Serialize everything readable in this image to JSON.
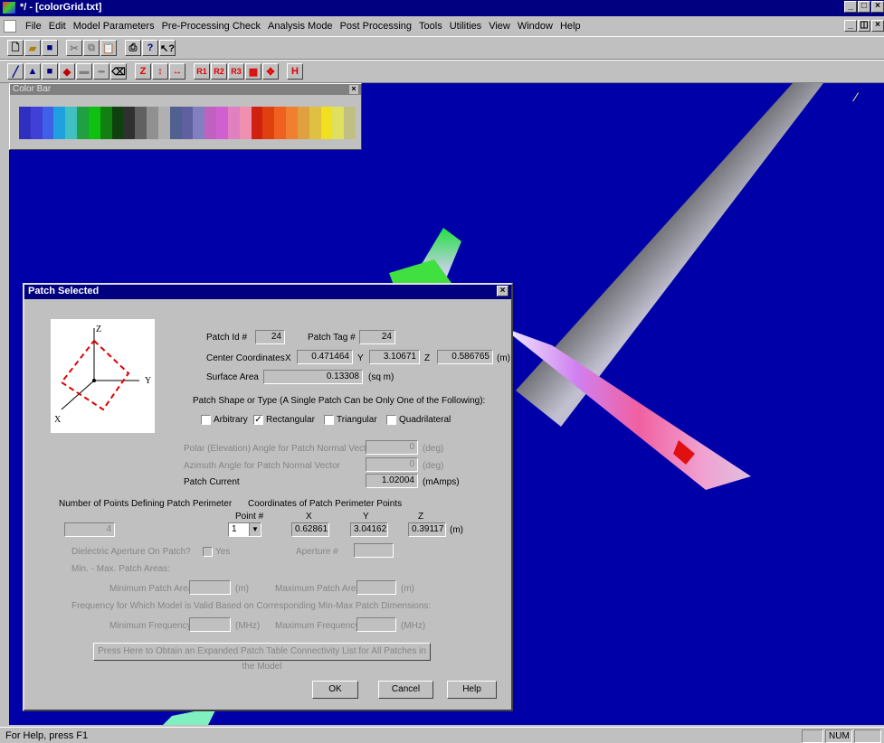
{
  "window": {
    "title": "*/ - [colorGrid.txt]"
  },
  "menu": [
    "File",
    "Edit",
    "Model Parameters",
    "Pre-Processing Check",
    "Analysis Mode",
    "Post Processing",
    "Tools",
    "Utilities",
    "View",
    "Window",
    "Help"
  ],
  "toolbar2": {
    "labels": [
      "Z",
      "R1",
      "R2",
      "R3",
      "H"
    ]
  },
  "colorbar": {
    "title": "Color Bar",
    "colors": [
      "#3030c0",
      "#4040d8",
      "#4060e8",
      "#20a0e0",
      "#40c0c0",
      "#20a040",
      "#10c010",
      "#108010",
      "#104010",
      "#303030",
      "#606060",
      "#909090",
      "#b0b0b0",
      "#506090",
      "#6060a0",
      "#8080c0",
      "#c060c0",
      "#d060d0",
      "#e080c0",
      "#f090b0",
      "#d02010",
      "#e04010",
      "#f06020",
      "#f08030",
      "#e0a040",
      "#e0c040",
      "#f0e020",
      "#e0e060",
      "#c0c080"
    ]
  },
  "status": {
    "help": "For Help, press F1",
    "num": "NUM"
  },
  "dialog": {
    "title": "Patch Selected",
    "diagram_labels": {
      "z": "Z",
      "y": "Y",
      "x": "X"
    },
    "patch_id_label": "Patch Id #",
    "patch_id": "24",
    "patch_tag_label": "Patch Tag #",
    "patch_tag": "24",
    "center_label": "Center Coordinates",
    "x_label": "X",
    "y_label": "Y",
    "z_label": "Z",
    "center_x": "0.471464",
    "center_y": "3.10671",
    "center_z": "0.586765",
    "unit_m": "(m)",
    "surface_area_label": "Surface Area",
    "surface_area": "0.13308",
    "unit_sqm": "(sq m)",
    "shape_heading": "Patch Shape or Type (A Single Patch Can be Only One of the Following):",
    "shapes": [
      "Arbitrary",
      "Rectangular",
      "Triangular",
      "Quadrilateral"
    ],
    "shape_checks": [
      "",
      "✓",
      "",
      ""
    ],
    "polar_label": "Polar (Elevation) Angle for Patch Normal Vector",
    "polar_value": "0",
    "unit_deg": "(deg)",
    "azimuth_label": "Azimuth Angle for Patch Normal Vector",
    "azimuth_value": "0",
    "current_label": "Patch Current",
    "current_value": "1.02004",
    "unit_mamps": "(mAmps)",
    "num_points_label": "Number of Points Defining Patch Perimeter",
    "num_points": "4",
    "coords_heading": "Coordinates of Patch Perimeter Points",
    "point_label": "Point #",
    "point_value": "1",
    "pt_x": "0.62861",
    "pt_y": "3.04162",
    "pt_z": "0.39117",
    "dielectric_label": "Dielectric Aperture On Patch?",
    "yes_label": "Yes",
    "aperture_label": "Aperture #",
    "minmax_area_label": "Min. - Max. Patch Areas:",
    "min_area_label": "Minimum Patch Area",
    "max_area_label": "Maximum Patch Area",
    "unit_m2": "(m)",
    "freq_heading": "Frequency for Which Model is Valid Based on Corresponding Min-Max Patch Dimensions:",
    "min_freq_label": "Minimum Frequency",
    "max_freq_label": "Maximum Frequency",
    "unit_mhz": "(MHz)",
    "expanded_button": "Press Here to Obtain an Expanded Patch Table Connectivity List for All Patches in the Model",
    "ok": "OK",
    "cancel": "Cancel",
    "help": "Help"
  }
}
